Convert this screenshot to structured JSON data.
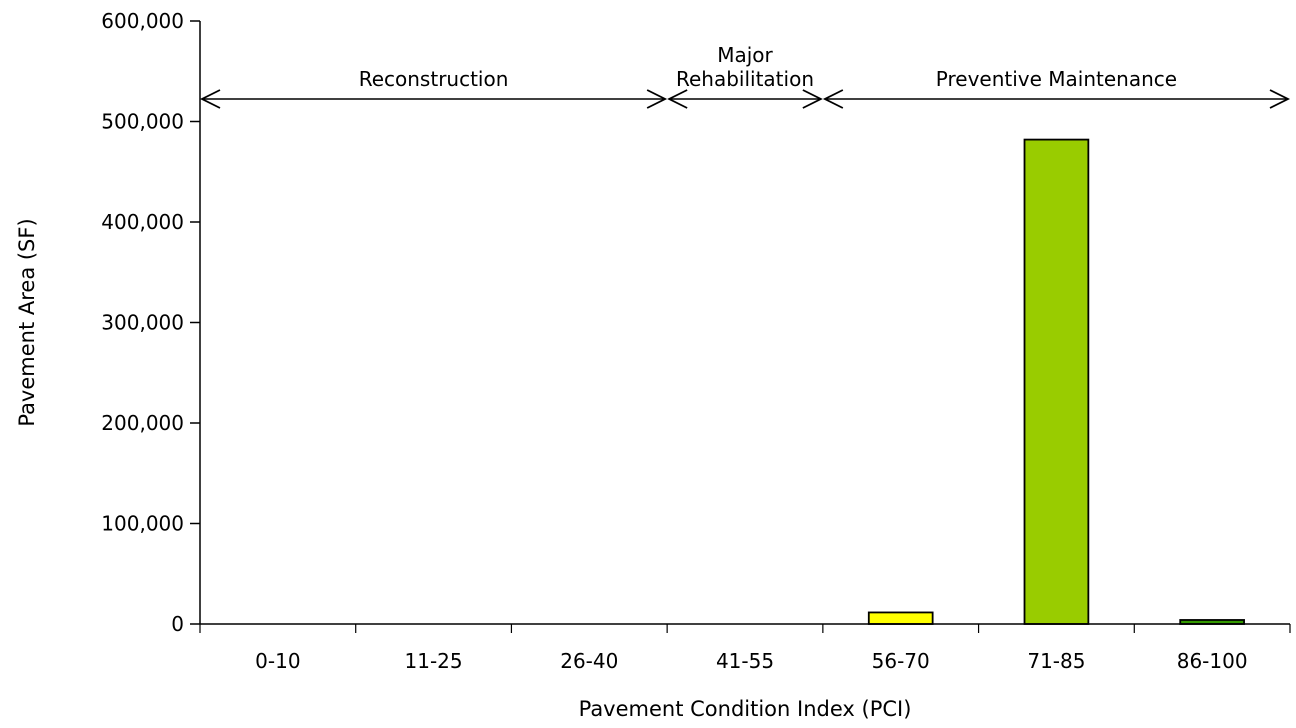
{
  "chart_data": {
    "type": "bar",
    "title": "",
    "xlabel": "Pavement Condition Index (PCI)",
    "ylabel": "Pavement Area (SF)",
    "categories": [
      "0-10",
      "11-25",
      "26-40",
      "41-55",
      "56-70",
      "71-85",
      "86-100"
    ],
    "values": [
      0,
      0,
      0,
      0,
      11500,
      482000,
      4000
    ],
    "bar_colors": [
      "#ffffff",
      "#ffffff",
      "#ffffff",
      "#ffffff",
      "#ffff00",
      "#99cc00",
      "#339900"
    ],
    "ylim": [
      0,
      600000
    ],
    "yticks": [
      0,
      100000,
      200000,
      300000,
      400000,
      500000,
      600000
    ],
    "ytick_labels": [
      "0",
      "100,000",
      "200,000",
      "300,000",
      "400,000",
      "500,000",
      "600,000"
    ],
    "grid": false,
    "annotations": [
      {
        "lines": [
          "Reconstruction"
        ],
        "from_category": 0,
        "to_category": 2
      },
      {
        "lines": [
          "Major",
          "Rehabilitation"
        ],
        "from_category": 3,
        "to_category": 3
      },
      {
        "lines": [
          "Preventive Maintenance"
        ],
        "from_category": 4,
        "to_category": 6
      }
    ]
  }
}
